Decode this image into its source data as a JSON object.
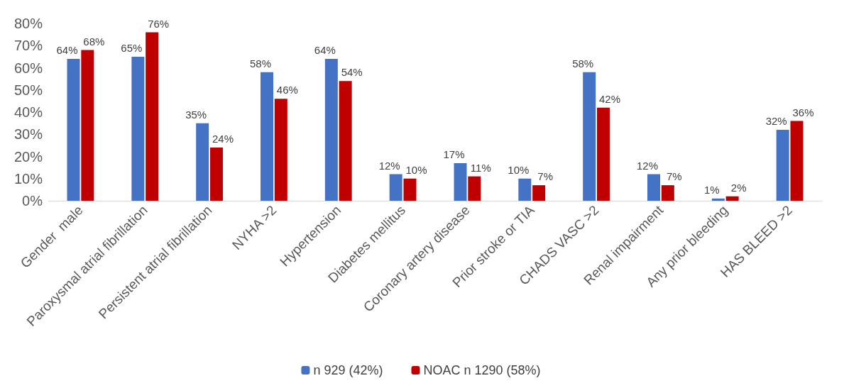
{
  "chart_data": {
    "type": "bar",
    "categories": [
      "Gender  male",
      "Paroxysmal atrial fibrillation",
      "Persistent atrial fibrillation",
      "NYHA >2",
      "Hypertension",
      "Diabetes mellitus",
      "Coronary artery disease",
      "Prior stroke or TIA",
      "CHADS VASC >2",
      "Renal impairment",
      "Any prior bleeding",
      "HAS BLEED >2"
    ],
    "series": [
      {
        "name": "n 929 (42%)",
        "color": "#4472c4",
        "values": [
          64,
          65,
          35,
          58,
          64,
          12,
          17,
          10,
          58,
          12,
          1,
          32
        ],
        "value_labels": [
          "64%",
          "65%",
          "35%",
          "58%",
          "64%",
          "12%",
          "17%",
          "10%",
          "58%",
          "12%",
          "1%",
          "32%"
        ]
      },
      {
        "name": "NOAC n 1290 (58%)",
        "color": "#c00000",
        "values": [
          68,
          76,
          24,
          46,
          54,
          10,
          11,
          7,
          42,
          7,
          2,
          36
        ],
        "value_labels": [
          "68%",
          "76%",
          "24%",
          "46%",
          "54%",
          "10%",
          "11%",
          "7%",
          "42%",
          "7%",
          "2%",
          "36%"
        ]
      }
    ],
    "ylim": [
      0,
      80
    ],
    "yticks": [
      {
        "value": 0,
        "label": "0%"
      },
      {
        "value": 10,
        "label": "10%"
      },
      {
        "value": 20,
        "label": "20%"
      },
      {
        "value": 30,
        "label": "30%"
      },
      {
        "value": 40,
        "label": "40%"
      },
      {
        "value": 50,
        "label": "50%"
      },
      {
        "value": 60,
        "label": "60%"
      },
      {
        "value": 70,
        "label": "70%"
      },
      {
        "value": 80,
        "label": "80%"
      }
    ],
    "grid": false,
    "legend": "bottom"
  }
}
